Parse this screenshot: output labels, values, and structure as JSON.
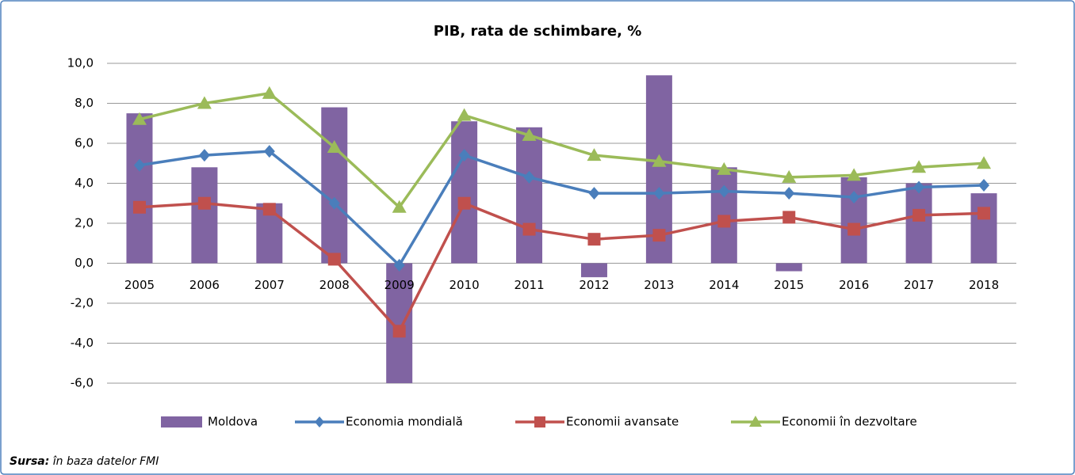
{
  "chart_data": {
    "type": "combo",
    "title": "PIB, rata de schimbare, %",
    "categories": [
      "2005",
      "2006",
      "2007",
      "2008",
      "2009",
      "2010",
      "2011",
      "2012",
      "2013",
      "2014",
      "2015",
      "2016",
      "2017",
      "2018"
    ],
    "series": [
      {
        "name": "Moldova",
        "type": "bar",
        "color": "#8064a2",
        "values": [
          7.5,
          4.8,
          3.0,
          7.8,
          -6.0,
          7.1,
          6.8,
          -0.7,
          9.4,
          4.8,
          -0.4,
          4.3,
          4.0,
          3.5
        ]
      },
      {
        "name": "Economia mondială",
        "type": "line",
        "marker": "diamond",
        "color": "#4a7ebb",
        "values": [
          4.9,
          5.4,
          5.6,
          3.0,
          -0.1,
          5.4,
          4.3,
          3.5,
          3.5,
          3.6,
          3.5,
          3.3,
          3.8,
          3.9
        ]
      },
      {
        "name": "Economii avansate",
        "type": "line",
        "marker": "square",
        "color": "#c0504d",
        "values": [
          2.8,
          3.0,
          2.7,
          0.2,
          -3.4,
          3.0,
          1.7,
          1.2,
          1.4,
          2.1,
          2.3,
          1.7,
          2.4,
          2.5
        ]
      },
      {
        "name": "Economii în dezvoltare",
        "type": "line",
        "marker": "triangle",
        "color": "#9bbb59",
        "values": [
          7.2,
          8.0,
          8.5,
          5.8,
          2.8,
          7.4,
          6.4,
          5.4,
          5.1,
          4.7,
          4.3,
          4.4,
          4.8,
          5.0
        ]
      }
    ],
    "ylim": [
      -6,
      10
    ],
    "yticks": [
      {
        "value": -6,
        "label": "-6,0"
      },
      {
        "value": -4,
        "label": "-4,0"
      },
      {
        "value": -2,
        "label": "-2,0"
      },
      {
        "value": 0,
        "label": "0,0"
      },
      {
        "value": 2,
        "label": "2,0"
      },
      {
        "value": 4,
        "label": "4,0"
      },
      {
        "value": 6,
        "label": "6,0"
      },
      {
        "value": 8,
        "label": "8,0"
      },
      {
        "value": 10,
        "label": "10,0"
      }
    ],
    "grid": true,
    "legend": "bottom",
    "source": {
      "label": "Sursa:",
      "text": "în baza datelor FMI"
    }
  }
}
